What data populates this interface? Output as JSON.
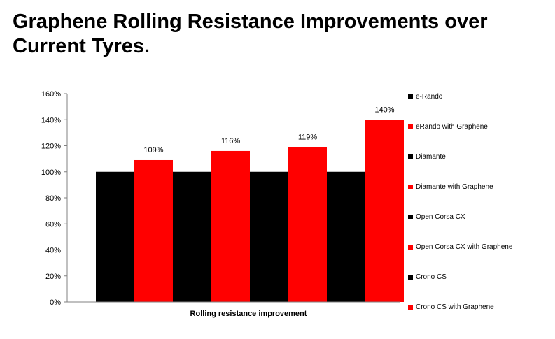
{
  "slide": {
    "title": "Graphene Rolling Resistance Improvements over Current Tyres."
  },
  "chart_data": {
    "type": "bar",
    "title": "",
    "xlabel": "Rolling resistance improvement",
    "ylabel": "",
    "categories": [
      "Rolling resistance improvement"
    ],
    "series": [
      {
        "name": "e-Rando",
        "color": "#000000",
        "values": [
          100
        ],
        "label": ""
      },
      {
        "name": "eRando with Graphene",
        "color": "#ff0000",
        "values": [
          109
        ],
        "label": "109%"
      },
      {
        "name": "Diamante",
        "color": "#000000",
        "values": [
          100
        ],
        "label": ""
      },
      {
        "name": "Diamante with Graphene",
        "color": "#ff0000",
        "values": [
          116
        ],
        "label": "116%"
      },
      {
        "name": "Open Corsa CX",
        "color": "#000000",
        "values": [
          100
        ],
        "label": ""
      },
      {
        "name": "Open Corsa CX with Graphene",
        "color": "#ff0000",
        "values": [
          119
        ],
        "label": "119%"
      },
      {
        "name": "Crono CS",
        "color": "#000000",
        "values": [
          100
        ],
        "label": ""
      },
      {
        "name": "Crono CS with Graphene",
        "color": "#ff0000",
        "values": [
          140
        ],
        "label": "140%"
      }
    ],
    "yticks": [
      "0%",
      "20%",
      "40%",
      "60%",
      "80%",
      "100%",
      "120%",
      "140%",
      "160%"
    ],
    "ylim": [
      0,
      160
    ],
    "grid": false,
    "legend_position": "right"
  }
}
